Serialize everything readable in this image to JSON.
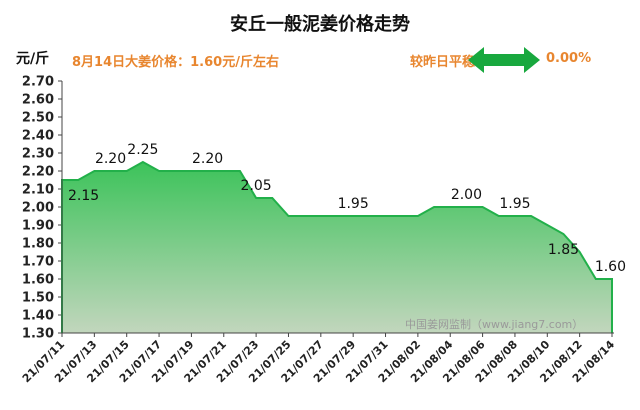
{
  "header": {
    "title": "安丘一般泥姜价格走势",
    "unit": "元/斤",
    "price_text": "8月14日大姜价格：1.60元/斤左右",
    "compare_label": "较昨日平稳",
    "compare_value": "0.00%"
  },
  "watermark": "中国姜网监制（www.jiang7.com）",
  "colors": {
    "accent": "#e8862f",
    "fill_top": "#3cc35a",
    "fill_bottom": "#c2d6bd",
    "line": "#22b04a",
    "arrow": "#18a83e"
  },
  "chart_data": {
    "type": "area",
    "title": "安丘一般泥姜价格走势",
    "ylabel": "元/斤",
    "ylim": [
      1.3,
      2.7
    ],
    "yticks": [
      "1.30",
      "1.40",
      "1.50",
      "1.60",
      "1.70",
      "1.80",
      "1.90",
      "2.00",
      "2.10",
      "2.20",
      "2.30",
      "2.40",
      "2.50",
      "2.60",
      "2.70"
    ],
    "grid": false,
    "x_ticks": [
      "21/07/11",
      "21/07/13",
      "21/07/15",
      "21/07/17",
      "21/07/19",
      "21/07/21",
      "21/07/23",
      "21/07/25",
      "21/07/27",
      "21/07/29",
      "21/07/31",
      "21/08/02",
      "21/08/04",
      "21/08/06",
      "21/08/08",
      "21/08/10",
      "21/08/12",
      "21/08/14"
    ],
    "x": [
      "21/07/11",
      "21/07/12",
      "21/07/13",
      "21/07/14",
      "21/07/15",
      "21/07/16",
      "21/07/17",
      "21/07/18",
      "21/07/19",
      "21/07/20",
      "21/07/21",
      "21/07/22",
      "21/07/23",
      "21/07/24",
      "21/07/25",
      "21/07/26",
      "21/07/27",
      "21/07/28",
      "21/07/29",
      "21/07/30",
      "21/07/31",
      "21/08/01",
      "21/08/02",
      "21/08/03",
      "21/08/04",
      "21/08/05",
      "21/08/06",
      "21/08/07",
      "21/08/08",
      "21/08/09",
      "21/08/10",
      "21/08/11",
      "21/08/12",
      "21/08/13",
      "21/08/14"
    ],
    "values": [
      2.15,
      2.15,
      2.2,
      2.2,
      2.2,
      2.25,
      2.2,
      2.2,
      2.2,
      2.2,
      2.2,
      2.2,
      2.05,
      2.05,
      1.95,
      1.95,
      1.95,
      1.95,
      1.95,
      1.95,
      1.95,
      1.95,
      1.95,
      2.0,
      2.0,
      2.0,
      2.0,
      1.95,
      1.95,
      1.95,
      1.9,
      1.85,
      1.75,
      1.6,
      1.6
    ],
    "data_labels": [
      {
        "index": 0,
        "text": "2.15",
        "pos": "below"
      },
      {
        "index": 3,
        "text": "2.20",
        "pos": "above"
      },
      {
        "index": 5,
        "text": "2.25",
        "pos": "above"
      },
      {
        "index": 9,
        "text": "2.20",
        "pos": "above"
      },
      {
        "index": 12,
        "text": "2.05",
        "pos": "above"
      },
      {
        "index": 18,
        "text": "1.95",
        "pos": "above"
      },
      {
        "index": 25,
        "text": "2.00",
        "pos": "above"
      },
      {
        "index": 28,
        "text": "1.95",
        "pos": "above"
      },
      {
        "index": 31,
        "text": "1.85",
        "pos": "below"
      },
      {
        "index": 34,
        "text": "1.60",
        "pos": "above"
      }
    ]
  }
}
